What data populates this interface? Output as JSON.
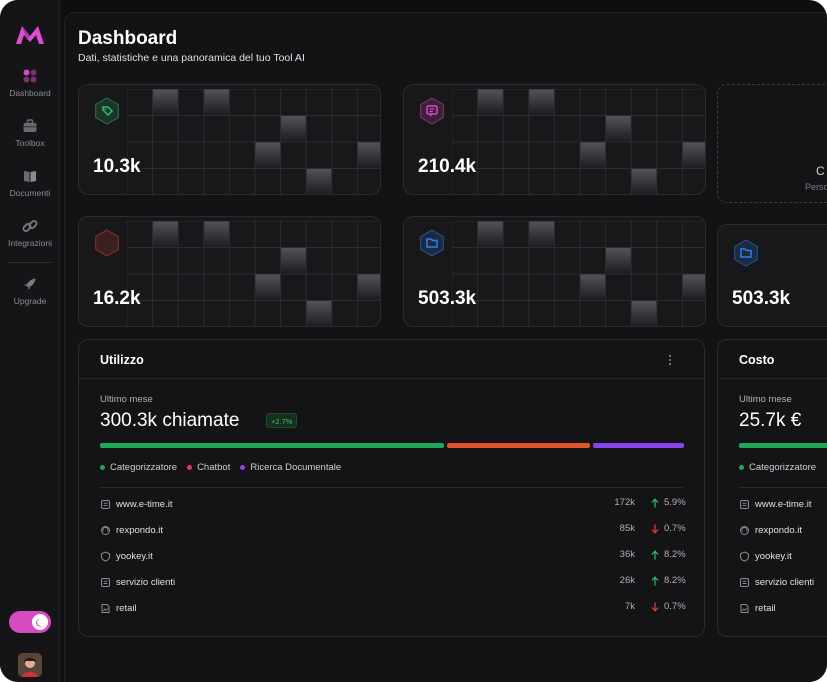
{
  "header": {
    "title": "Dashboard",
    "subtitle": "Dati, statistiche e una panoramica del tuo Tool AI"
  },
  "sidebar": {
    "items": [
      {
        "label": "Dashboard",
        "icon": "dashboard-icon",
        "active": true
      },
      {
        "label": "Toolbox",
        "icon": "toolbox-icon"
      },
      {
        "label": "Documenti",
        "icon": "book-icon"
      },
      {
        "label": "Integrazioni",
        "icon": "link-icon"
      },
      {
        "label": "Upgrade",
        "icon": "rocket-icon"
      }
    ],
    "theme_toggle": "dark"
  },
  "stats": [
    {
      "value": "10.3k",
      "icon": "tag-icon",
      "color": "#2fbf6a"
    },
    {
      "value": "210.4k",
      "icon": "message-icon",
      "color": "#d64bc0"
    },
    {
      "value": "16.2k",
      "icon": "phone-icon",
      "color": "#e0413b"
    },
    {
      "value": "503.3k",
      "icon": "folder-icon",
      "color": "#2f7ff0"
    },
    {
      "value": "503.3k",
      "icon": "folder-icon",
      "color": "#2f7ff0"
    }
  ],
  "new_card": {
    "title": "C",
    "subtitle": "Perso"
  },
  "usage": {
    "title": "Utilizzo",
    "period": "Ultimo mese",
    "total": "300.3k chiamate",
    "change": "+2.7%",
    "segments": [
      {
        "name": "Categorizzatore",
        "share": 0.595,
        "color": "#1da85a"
      },
      {
        "name": "Chatbot",
        "share": 0.25,
        "color": "#e0532c"
      },
      {
        "name": "Ricerca Documentale",
        "share": 0.155,
        "color": "#8844ee"
      }
    ],
    "legend": [
      {
        "label": "Categorizzatore",
        "color": "#1da85a"
      },
      {
        "label": "Chatbot",
        "color": "#e23a5a"
      },
      {
        "label": "Ricerca Documentale",
        "color": "#8844ee"
      }
    ],
    "rows": [
      {
        "name": "www.e-time.it",
        "icon": "document-icon",
        "value": "172k",
        "trend": "5.9%",
        "dir": "up"
      },
      {
        "name": "rexpondo.it",
        "icon": "headset-icon",
        "value": "85k",
        "trend": "0.7%",
        "dir": "down"
      },
      {
        "name": "yookey.it",
        "icon": "shield-icon",
        "value": "36k",
        "trend": "8.2%",
        "dir": "up"
      },
      {
        "name": "servizio clienti",
        "icon": "document-icon",
        "value": "26k",
        "trend": "8.2%",
        "dir": "up"
      },
      {
        "name": "retail",
        "icon": "file-image-icon",
        "value": "7k",
        "trend": "0.7%",
        "dir": "down"
      }
    ]
  },
  "cost": {
    "title": "Costo",
    "period": "Ultimo mese",
    "total": "25.7k €",
    "legend": [
      {
        "label": "Categorizzatore",
        "color": "#1da85a"
      }
    ],
    "rows": [
      {
        "name": "www.e-time.it",
        "icon": "document-icon"
      },
      {
        "name": "rexpondo.it",
        "icon": "headset-icon"
      },
      {
        "name": "yookey.it",
        "icon": "shield-icon"
      },
      {
        "name": "servizio clienti",
        "icon": "document-icon"
      },
      {
        "name": "retail",
        "icon": "file-image-icon"
      }
    ]
  }
}
